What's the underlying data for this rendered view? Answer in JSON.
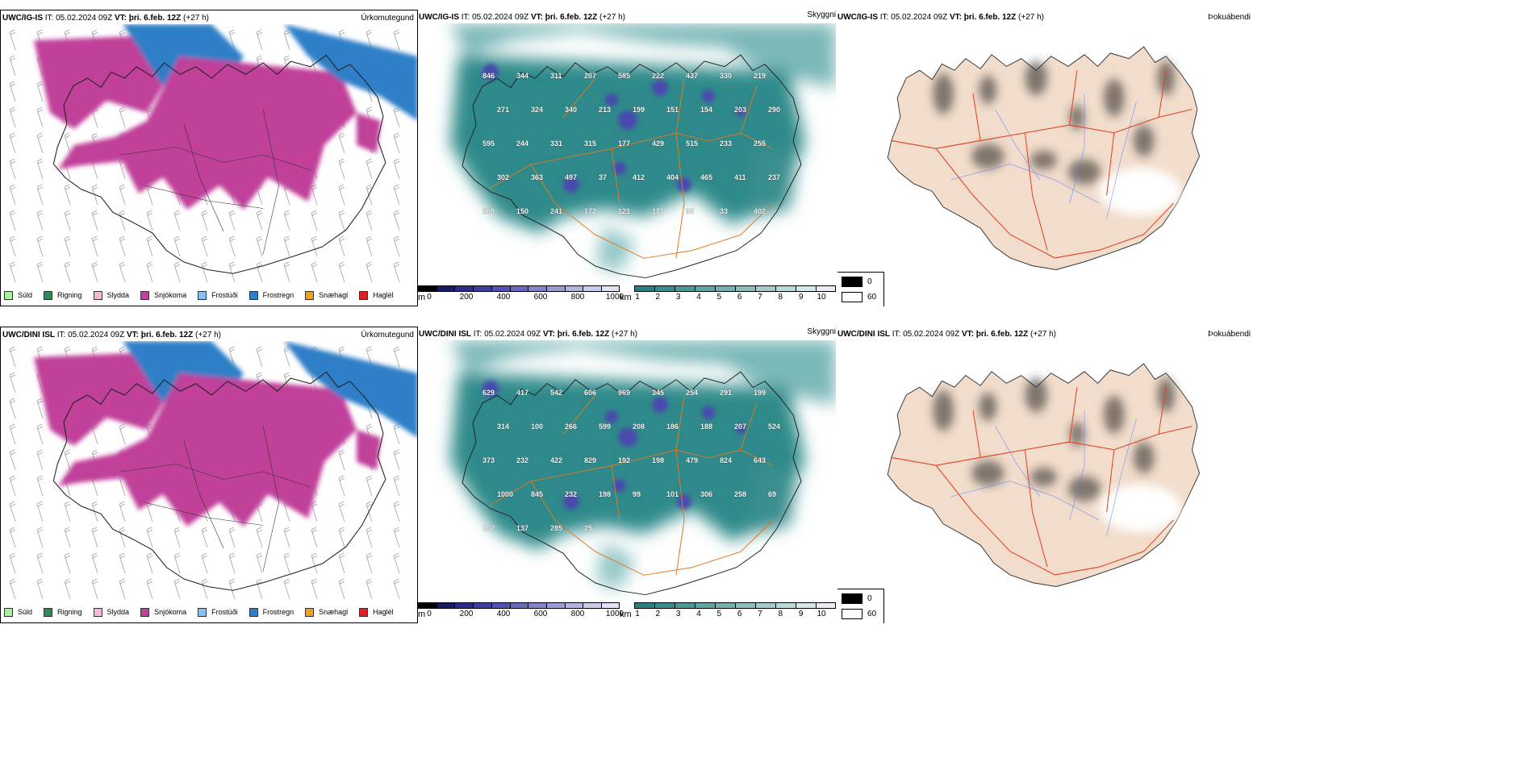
{
  "rows": [
    {
      "model": "UWC/IG-IS",
      "it": "IT: 05.02.2024 09Z",
      "vt_label": "VT:",
      "vt_value": "þri. 6.feb. 12Z",
      "lead": "(+27 h)",
      "panels": {
        "precip_type": "Úrkomutegund",
        "visibility": "Skyggni",
        "cloud": "Þokuábendi"
      },
      "height_labels": [
        "846",
        "344",
        "311",
        "207",
        "585",
        "222",
        "437",
        "330",
        "219",
        "271",
        "324",
        "340",
        "213",
        "199",
        "151",
        "154",
        "203",
        "290",
        "595",
        "244",
        "331",
        "315",
        "177",
        "429",
        "515",
        "233",
        "255",
        "302",
        "363",
        "497",
        "37",
        "412",
        "404",
        "465",
        "411",
        "237",
        "200",
        "150",
        "241",
        "172",
        "121",
        "171",
        "93",
        "33",
        "402"
      ]
    },
    {
      "model": "UWC/DINI ISL",
      "it": "IT: 05.02.2024 09Z",
      "vt_label": "VT:",
      "vt_value": "þri. 6.feb. 12Z",
      "lead": "(+27 h)",
      "panels": {
        "precip_type": "Úrkomutegund",
        "visibility": "Skyggni",
        "cloud": "Þokuábendi"
      },
      "height_labels": [
        "629",
        "417",
        "542",
        "606",
        "969",
        "345",
        "254",
        "291",
        "199",
        "314",
        "100",
        "266",
        "599",
        "208",
        "186",
        "188",
        "207",
        "524",
        "373",
        "232",
        "422",
        "829",
        "192",
        "198",
        "479",
        "824",
        "643",
        "1000",
        "845",
        "232",
        "198",
        "99",
        "101",
        "306",
        "258",
        "69",
        "102",
        "137",
        "285",
        "25"
      ]
    }
  ],
  "precip_legend": [
    {
      "label": "Súld",
      "color": "#a8f0a0"
    },
    {
      "label": "Rigning",
      "color": "#2e8b57"
    },
    {
      "label": "Slydda",
      "color": "#f5b8d8"
    },
    {
      "label": "Snjókoma",
      "color": "#c0409a"
    },
    {
      "label": "Frostúði",
      "color": "#88c0f0"
    },
    {
      "label": "Frostregn",
      "color": "#2f7fc8"
    },
    {
      "label": "Snæhagl",
      "color": "#f0a020"
    },
    {
      "label": "Haglél",
      "color": "#e02020"
    }
  ],
  "height_bar": {
    "unit": "m",
    "ticks": [
      "0",
      "200",
      "400",
      "600",
      "800",
      "1000"
    ],
    "colors": [
      "#000000",
      "#1a1a60",
      "#2c2c8a",
      "#3e3ea0",
      "#5252b0",
      "#6a6abc",
      "#8484c8",
      "#9c9cd4",
      "#b4b4e0",
      "#cbcbeb",
      "#e2e2f5"
    ]
  },
  "vis_bar": {
    "unit": "km",
    "ticks": [
      "1",
      "2",
      "3",
      "4",
      "5",
      "6",
      "7",
      "8",
      "9",
      "10"
    ],
    "colors": [
      "#2a8080",
      "#3a8c8c",
      "#4c9898",
      "#60a4a4",
      "#74b0b0",
      "#8cbebe",
      "#a4cccc",
      "#bcdada",
      "#d4e8e8",
      "#ececf4"
    ]
  },
  "cloud_legend": [
    {
      "label": "0",
      "color": "#000000"
    },
    {
      "label": "60",
      "color": "#ffffff"
    }
  ]
}
